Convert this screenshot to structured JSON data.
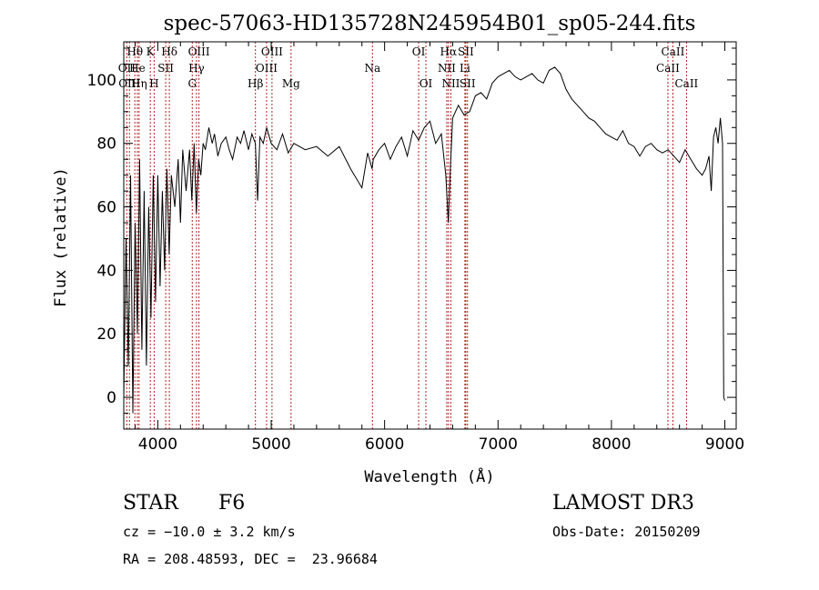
{
  "chart_data": {
    "type": "line",
    "title": "spec-57063-HD135728N245954B01_sp05-244.fits",
    "xlabel": "Wavelength (Å)",
    "ylabel": "Flux (relative)",
    "xlim": [
      3700,
      9100
    ],
    "ylim": [
      -10,
      112
    ],
    "xticks": [
      4000,
      5000,
      6000,
      7000,
      8000,
      9000
    ],
    "yticks": [
      0,
      20,
      40,
      60,
      80,
      100
    ],
    "grid": false,
    "series": [
      {
        "name": "flux",
        "color": "#000000",
        "x": [
          3700,
          3720,
          3740,
          3760,
          3780,
          3800,
          3820,
          3840,
          3860,
          3880,
          3900,
          3920,
          3940,
          3960,
          3980,
          4000,
          4020,
          4040,
          4060,
          4080,
          4100,
          4120,
          4150,
          4180,
          4200,
          4220,
          4250,
          4280,
          4300,
          4320,
          4340,
          4360,
          4380,
          4400,
          4420,
          4450,
          4480,
          4500,
          4530,
          4560,
          4600,
          4630,
          4660,
          4700,
          4730,
          4760,
          4800,
          4830,
          4860,
          4880,
          4900,
          4930,
          4960,
          5000,
          5050,
          5100,
          5150,
          5200,
          5300,
          5400,
          5500,
          5600,
          5700,
          5800,
          5850,
          5890,
          5900,
          5950,
          6000,
          6050,
          6100,
          6150,
          6200,
          6250,
          6300,
          6350,
          6400,
          6450,
          6500,
          6540,
          6562,
          6580,
          6600,
          6650,
          6700,
          6750,
          6800,
          6850,
          6900,
          6950,
          7000,
          7050,
          7100,
          7150,
          7200,
          7250,
          7300,
          7350,
          7400,
          7450,
          7500,
          7550,
          7600,
          7650,
          7700,
          7750,
          7800,
          7850,
          7900,
          7950,
          8000,
          8050,
          8100,
          8150,
          8200,
          8250,
          8300,
          8350,
          8400,
          8450,
          8500,
          8550,
          8600,
          8650,
          8700,
          8750,
          8800,
          8830,
          8860,
          8880,
          8900,
          8920,
          8940,
          8960,
          8980,
          8990,
          9000
        ],
        "y": [
          0,
          50,
          10,
          70,
          -5,
          55,
          20,
          75,
          15,
          65,
          10,
          60,
          25,
          70,
          30,
          70,
          35,
          65,
          40,
          72,
          45,
          70,
          60,
          75,
          55,
          78,
          65,
          78,
          62,
          80,
          58,
          75,
          70,
          80,
          78,
          85,
          80,
          83,
          76,
          80,
          82,
          78,
          75,
          82,
          80,
          84,
          78,
          83,
          80,
          62,
          82,
          80,
          85,
          80,
          78,
          83,
          77,
          80,
          78,
          79,
          76,
          79,
          72,
          66,
          77,
          72,
          75,
          78,
          80,
          75,
          79,
          82,
          76,
          84,
          81,
          85,
          87,
          80,
          83,
          70,
          55,
          72,
          88,
          92,
          89,
          90,
          95,
          96,
          94,
          99,
          101,
          102,
          103,
          101,
          100,
          101,
          102,
          100,
          99,
          103,
          104,
          102,
          97,
          94,
          92,
          90,
          88,
          87,
          85,
          83,
          82,
          81,
          84,
          80,
          79,
          76,
          79,
          80,
          78,
          77,
          78,
          76,
          74,
          78,
          75,
          72,
          70,
          72,
          76,
          65,
          82,
          85,
          80,
          88,
          80,
          0,
          -1
        ]
      }
    ],
    "line_markers": [
      {
        "label": "Hθ",
        "x": 3798,
        "row": 0,
        "anchor": "middle"
      },
      {
        "label": "OII",
        "x": 3727,
        "row": 1,
        "anchor": "middle"
      },
      {
        "label": "OIII",
        "x": 3750,
        "row": 2,
        "anchor": "middle"
      },
      {
        "label": "Hη",
        "x": 3835,
        "row": 2,
        "anchor": "middle"
      },
      {
        "label": "He",
        "x": 3820,
        "row": 1,
        "anchor": "middle"
      },
      {
        "label": "K",
        "x": 3934,
        "row": 0,
        "anchor": "middle"
      },
      {
        "label": "H",
        "x": 3968,
        "row": 2,
        "anchor": "middle"
      },
      {
        "label": "Hδ",
        "x": 4102,
        "row": 0,
        "anchor": "middle"
      },
      {
        "label": "SII",
        "x": 4070,
        "row": 1,
        "anchor": "middle"
      },
      {
        "label": "OIII",
        "x": 4363,
        "row": 0,
        "anchor": "middle"
      },
      {
        "label": "Hγ",
        "x": 4341,
        "row": 1,
        "anchor": "middle"
      },
      {
        "label": "G",
        "x": 4304,
        "row": 2,
        "anchor": "middle"
      },
      {
        "label": "OIII",
        "x": 5007,
        "row": 0,
        "anchor": "middle"
      },
      {
        "label": "OIII",
        "x": 4959,
        "row": 1,
        "anchor": "middle"
      },
      {
        "label": "Hβ",
        "x": 4861,
        "row": 2,
        "anchor": "middle"
      },
      {
        "label": "Mg",
        "x": 5175,
        "row": 2,
        "anchor": "middle"
      },
      {
        "label": "Na",
        "x": 5893,
        "row": 1,
        "anchor": "middle"
      },
      {
        "label": "OI",
        "x": 6300,
        "row": 0,
        "anchor": "middle"
      },
      {
        "label": "OI",
        "x": 6364,
        "row": 2,
        "anchor": "middle"
      },
      {
        "label": "Hα",
        "x": 6563,
        "row": 0,
        "anchor": "middle"
      },
      {
        "label": "SII",
        "x": 6716,
        "row": 0,
        "anchor": "middle"
      },
      {
        "label": "NII",
        "x": 6548,
        "row": 1,
        "anchor": "middle"
      },
      {
        "label": "Li",
        "x": 6708,
        "row": 1,
        "anchor": "middle"
      },
      {
        "label": "NII",
        "x": 6584,
        "row": 2,
        "anchor": "middle"
      },
      {
        "label": "SII",
        "x": 6731,
        "row": 2,
        "anchor": "middle"
      },
      {
        "label": "CaII",
        "x": 8542,
        "row": 0,
        "anchor": "middle"
      },
      {
        "label": "CaII",
        "x": 8498,
        "row": 1,
        "anchor": "middle"
      },
      {
        "label": "CaII",
        "x": 8662,
        "row": 2,
        "anchor": "middle"
      }
    ]
  },
  "info": {
    "object_class": "STAR",
    "subclass": "F6",
    "survey": "LAMOST DR3",
    "redshift": "cz = −10.0 ± 3.2 km/s",
    "obs_date": "Obs-Date: 20150209",
    "coords": "RA = 208.48593, DEC =  23.96684"
  }
}
